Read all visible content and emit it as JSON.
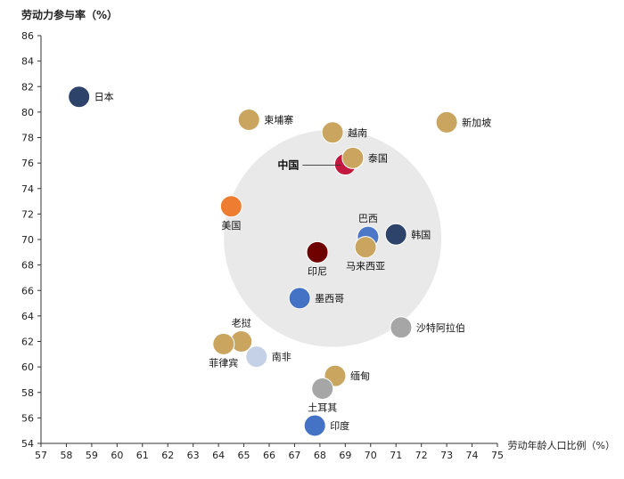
{
  "chart_data": {
    "type": "scatter",
    "title": "",
    "xlabel": "劳动年龄人口比例（%）",
    "ylabel": "劳动力参与率（%）",
    "xlim": [
      57,
      75
    ],
    "ylim": [
      54,
      86
    ],
    "x_ticks": [
      57,
      58,
      59,
      60,
      61,
      62,
      63,
      64,
      65,
      66,
      67,
      68,
      69,
      70,
      71,
      72,
      73,
      74,
      75
    ],
    "y_ticks": [
      54,
      56,
      58,
      60,
      62,
      64,
      66,
      68,
      70,
      72,
      74,
      76,
      78,
      80,
      82,
      84,
      86
    ],
    "grid": false,
    "highlight_region": {
      "shape": "circle",
      "color": "#e9e9e9",
      "center": [
        68.5,
        70.1
      ]
    },
    "points": [
      {
        "name": "日本",
        "x": 58.5,
        "y": 81.2,
        "color": "#2e4369",
        "label_pos": "right"
      },
      {
        "name": "柬埔寨",
        "x": 65.2,
        "y": 79.4,
        "color": "#c9a55f",
        "label_pos": "right"
      },
      {
        "name": "越南",
        "x": 68.5,
        "y": 78.4,
        "color": "#c9a55f",
        "label_pos": "right"
      },
      {
        "name": "新加坡",
        "x": 73.0,
        "y": 79.2,
        "color": "#c9a55f",
        "label_pos": "right"
      },
      {
        "name": "中国",
        "x": 69.0,
        "y": 75.9,
        "color": "#c3173f",
        "label_pos": "leftline",
        "bold": true
      },
      {
        "name": "泰国",
        "x": 69.3,
        "y": 76.4,
        "color": "#c9a55f",
        "label_pos": "right"
      },
      {
        "name": "美国",
        "x": 64.5,
        "y": 72.6,
        "color": "#ee7d31",
        "label_pos": "below"
      },
      {
        "name": "巴西",
        "x": 69.9,
        "y": 70.2,
        "color": "#4d78c8",
        "label_pos": "above"
      },
      {
        "name": "韩国",
        "x": 71.0,
        "y": 70.4,
        "color": "#2e4369",
        "label_pos": "right"
      },
      {
        "name": "马来西亚",
        "x": 69.8,
        "y": 69.4,
        "color": "#c9a55f",
        "label_pos": "below"
      },
      {
        "name": "印尼",
        "x": 67.9,
        "y": 69.0,
        "color": "#6f0000",
        "label_pos": "below"
      },
      {
        "name": "墨西哥",
        "x": 67.2,
        "y": 65.4,
        "color": "#4472c4",
        "label_pos": "right"
      },
      {
        "name": "沙特阿拉伯",
        "x": 71.2,
        "y": 63.1,
        "color": "#a6a6a6",
        "label_pos": "right"
      },
      {
        "name": "老挝",
        "x": 64.9,
        "y": 62.0,
        "color": "#c9a55f",
        "label_pos": "above"
      },
      {
        "name": "菲律宾",
        "x": 64.2,
        "y": 61.8,
        "color": "#c9a55f",
        "label_pos": "below"
      },
      {
        "name": "南非",
        "x": 65.5,
        "y": 60.8,
        "color": "#c5d1e6",
        "label_pos": "right"
      },
      {
        "name": "缅甸",
        "x": 68.6,
        "y": 59.3,
        "color": "#c9a55f",
        "label_pos": "right"
      },
      {
        "name": "土耳其",
        "x": 68.1,
        "y": 58.3,
        "color": "#a6a6a6",
        "label_pos": "below"
      },
      {
        "name": "印度",
        "x": 67.8,
        "y": 55.4,
        "color": "#4472c4",
        "label_pos": "right"
      }
    ]
  }
}
